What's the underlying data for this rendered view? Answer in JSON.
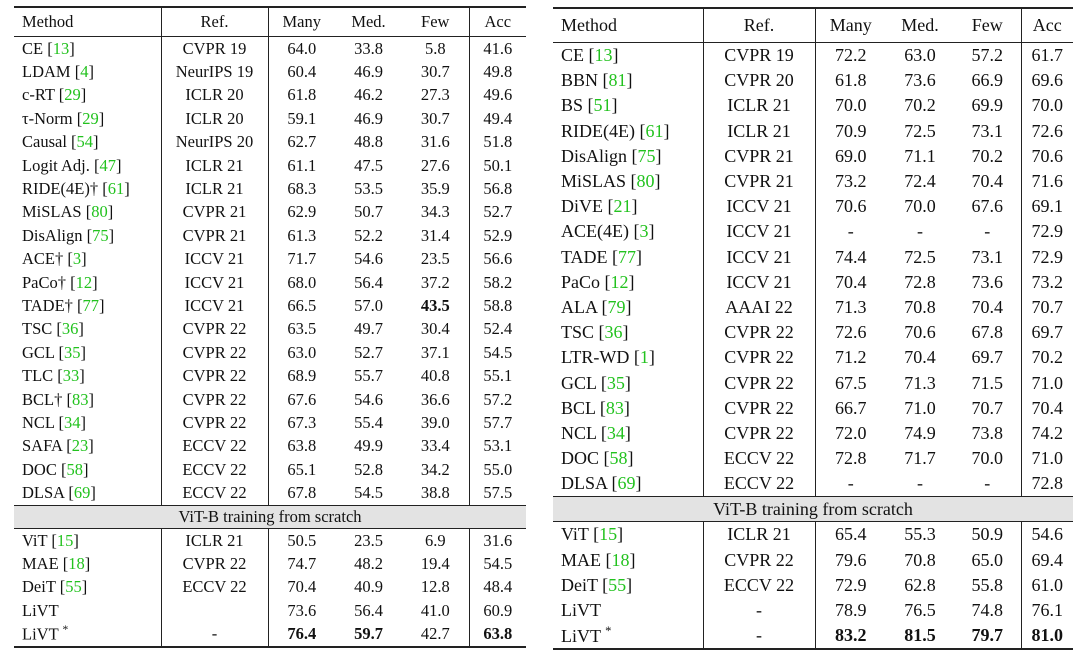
{
  "left": {
    "headers": {
      "method": "Method",
      "ref": "Ref.",
      "many": "Many",
      "med": "Med.",
      "few": "Few",
      "acc": "Acc"
    },
    "rows": [
      {
        "name": "CE ",
        "cite": "13",
        "suffix": "",
        "ref": "CVPR 19",
        "many": "64.0",
        "med": "33.8",
        "few": "5.8",
        "acc": "41.6"
      },
      {
        "name": "LDAM ",
        "cite": "4",
        "suffix": "",
        "ref": "NeurIPS 19",
        "many": "60.4",
        "med": "46.9",
        "few": "30.7",
        "acc": "49.8"
      },
      {
        "name": "c-RT ",
        "cite": "29",
        "suffix": "",
        "ref": "ICLR 20",
        "many": "61.8",
        "med": "46.2",
        "few": "27.3",
        "acc": "49.6"
      },
      {
        "name": "τ-Norm ",
        "cite": "29",
        "suffix": "",
        "ref": "ICLR 20",
        "many": "59.1",
        "med": "46.9",
        "few": "30.7",
        "acc": "49.4"
      },
      {
        "name": "Causal ",
        "cite": "54",
        "suffix": "",
        "ref": "NeurIPS 20",
        "many": "62.7",
        "med": "48.8",
        "few": "31.6",
        "acc": "51.8"
      },
      {
        "name": "Logit Adj. ",
        "cite": "47",
        "suffix": "",
        "ref": "ICLR 21",
        "many": "61.1",
        "med": "47.5",
        "few": "27.6",
        "acc": "50.1"
      },
      {
        "name": "RIDE(4E)† ",
        "cite": "61",
        "suffix": "",
        "ref": "ICLR 21",
        "many": "68.3",
        "med": "53.5",
        "few": "35.9",
        "acc": "56.8"
      },
      {
        "name": "MiSLAS ",
        "cite": "80",
        "suffix": "",
        "ref": "CVPR 21",
        "many": "62.9",
        "med": "50.7",
        "few": "34.3",
        "acc": "52.7"
      },
      {
        "name": "DisAlign ",
        "cite": "75",
        "suffix": "",
        "ref": "CVPR 21",
        "many": "61.3",
        "med": "52.2",
        "few": "31.4",
        "acc": "52.9"
      },
      {
        "name": "ACE† ",
        "cite": "3",
        "suffix": "",
        "ref": "ICCV 21",
        "many": "71.7",
        "med": "54.6",
        "few": "23.5",
        "acc": "56.6"
      },
      {
        "name": "PaCo† ",
        "cite": "12",
        "suffix": "",
        "ref": "ICCV 21",
        "many": "68.0",
        "med": "56.4",
        "few": "37.2",
        "acc": "58.2"
      },
      {
        "name": "TADE† ",
        "cite": "77",
        "suffix": "",
        "ref": "ICCV 21",
        "many": "66.5",
        "med": "57.0",
        "few": "43.5",
        "acc": "58.8",
        "bold": [
          "few"
        ]
      },
      {
        "name": "TSC ",
        "cite": "36",
        "suffix": "",
        "ref": "CVPR 22",
        "many": "63.5",
        "med": "49.7",
        "few": "30.4",
        "acc": "52.4"
      },
      {
        "name": "GCL ",
        "cite": "35",
        "suffix": "",
        "ref": "CVPR 22",
        "many": "63.0",
        "med": "52.7",
        "few": "37.1",
        "acc": "54.5"
      },
      {
        "name": "TLC ",
        "cite": "33",
        "suffix": "",
        "ref": "CVPR 22",
        "many": "68.9",
        "med": "55.7",
        "few": "40.8",
        "acc": "55.1"
      },
      {
        "name": "BCL† ",
        "cite": "83",
        "suffix": "",
        "ref": "CVPR 22",
        "many": "67.6",
        "med": "54.6",
        "few": "36.6",
        "acc": "57.2"
      },
      {
        "name": "NCL ",
        "cite": "34",
        "suffix": "",
        "ref": "CVPR 22",
        "many": "67.3",
        "med": "55.4",
        "few": "39.0",
        "acc": "57.7"
      },
      {
        "name": "SAFA ",
        "cite": "23",
        "suffix": "",
        "ref": "ECCV 22",
        "many": "63.8",
        "med": "49.9",
        "few": "33.4",
        "acc": "53.1"
      },
      {
        "name": "DOC ",
        "cite": "58",
        "suffix": "",
        "ref": "ECCV 22",
        "many": "65.1",
        "med": "52.8",
        "few": "34.2",
        "acc": "55.0"
      },
      {
        "name": "DLSA ",
        "cite": "69",
        "suffix": "",
        "ref": "ECCV 22",
        "many": "67.8",
        "med": "54.5",
        "few": "38.8",
        "acc": "57.5"
      }
    ],
    "separator": "ViT-B training from scratch",
    "vit_rows": [
      {
        "name": "ViT ",
        "cite": "15",
        "suffix": "",
        "ref": "ICLR 21",
        "many": "50.5",
        "med": "23.5",
        "few": "6.9",
        "acc": "31.6"
      },
      {
        "name": "MAE ",
        "cite": "18",
        "suffix": "",
        "ref": "CVPR 22",
        "many": "74.7",
        "med": "48.2",
        "few": "19.4",
        "acc": "54.5"
      },
      {
        "name": "DeiT ",
        "cite": "55",
        "suffix": "",
        "ref": "ECCV 22",
        "many": "70.4",
        "med": "40.9",
        "few": "12.8",
        "acc": "48.4"
      },
      {
        "name": "LiVT",
        "cite": "",
        "suffix": "",
        "ref": "",
        "many": "73.6",
        "med": "56.4",
        "few": "41.0",
        "acc": "60.9"
      },
      {
        "name": "LiVT ",
        "cite": "",
        "suffix": "*",
        "ref": "-",
        "many": "76.4",
        "med": "59.7",
        "few": "42.7",
        "acc": "63.8",
        "bold": [
          "many",
          "med",
          "acc"
        ]
      }
    ]
  },
  "right": {
    "headers": {
      "method": "Method",
      "ref": "Ref.",
      "many": "Many",
      "med": "Med.",
      "few": "Few",
      "acc": "Acc"
    },
    "rows": [
      {
        "name": "CE ",
        "cite": "13",
        "suffix": "",
        "ref": "CVPR 19",
        "many": "72.2",
        "med": "63.0",
        "few": "57.2",
        "acc": "61.7"
      },
      {
        "name": "BBN ",
        "cite": "81",
        "suffix": "",
        "ref": "CVPR 20",
        "many": "61.8",
        "med": "73.6",
        "few": "66.9",
        "acc": "69.6"
      },
      {
        "name": "BS ",
        "cite": "51",
        "suffix": "",
        "ref": "ICLR 21",
        "many": "70.0",
        "med": "70.2",
        "few": "69.9",
        "acc": "70.0"
      },
      {
        "name": "RIDE(4E) ",
        "cite": "61",
        "suffix": "",
        "ref": "ICLR 21",
        "many": "70.9",
        "med": "72.5",
        "few": "73.1",
        "acc": "72.6"
      },
      {
        "name": "DisAlign ",
        "cite": "75",
        "suffix": "",
        "ref": "CVPR 21",
        "many": "69.0",
        "med": "71.1",
        "few": "70.2",
        "acc": "70.6"
      },
      {
        "name": "MiSLAS ",
        "cite": "80",
        "suffix": "",
        "ref": "CVPR 21",
        "many": "73.2",
        "med": "72.4",
        "few": "70.4",
        "acc": "71.6"
      },
      {
        "name": "DiVE ",
        "cite": "21",
        "suffix": "",
        "ref": "ICCV 21",
        "many": "70.6",
        "med": "70.0",
        "few": "67.6",
        "acc": "69.1"
      },
      {
        "name": "ACE(4E) ",
        "cite": "3",
        "suffix": "",
        "ref": "ICCV 21",
        "many": "-",
        "med": "-",
        "few": "-",
        "acc": "72.9"
      },
      {
        "name": "TADE ",
        "cite": "77",
        "suffix": "",
        "ref": "ICCV 21",
        "many": "74.4",
        "med": "72.5",
        "few": "73.1",
        "acc": "72.9"
      },
      {
        "name": "PaCo ",
        "cite": "12",
        "suffix": "",
        "ref": "ICCV 21",
        "many": "70.4",
        "med": "72.8",
        "few": "73.6",
        "acc": "73.2"
      },
      {
        "name": "ALA ",
        "cite": "79",
        "suffix": "",
        "ref": "AAAI 22",
        "many": "71.3",
        "med": "70.8",
        "few": "70.4",
        "acc": "70.7"
      },
      {
        "name": "TSC ",
        "cite": "36",
        "suffix": "",
        "ref": "CVPR 22",
        "many": "72.6",
        "med": "70.6",
        "few": "67.8",
        "acc": "69.7"
      },
      {
        "name": "LTR-WD ",
        "cite": "1",
        "suffix": "",
        "ref": "CVPR 22",
        "many": "71.2",
        "med": "70.4",
        "few": "69.7",
        "acc": "70.2"
      },
      {
        "name": "GCL ",
        "cite": "35",
        "suffix": "",
        "ref": "CVPR 22",
        "many": "67.5",
        "med": "71.3",
        "few": "71.5",
        "acc": "71.0"
      },
      {
        "name": "BCL ",
        "cite": "83",
        "suffix": "",
        "ref": "CVPR 22",
        "many": "66.7",
        "med": "71.0",
        "few": "70.7",
        "acc": "70.4"
      },
      {
        "name": "NCL ",
        "cite": "34",
        "suffix": "",
        "ref": "CVPR 22",
        "many": "72.0",
        "med": "74.9",
        "few": "73.8",
        "acc": "74.2"
      },
      {
        "name": "DOC ",
        "cite": "58",
        "suffix": "",
        "ref": "ECCV 22",
        "many": "72.8",
        "med": "71.7",
        "few": "70.0",
        "acc": "71.0"
      },
      {
        "name": "DLSA ",
        "cite": "69",
        "suffix": "",
        "ref": "ECCV 22",
        "many": "-",
        "med": "-",
        "few": "-",
        "acc": "72.8"
      }
    ],
    "separator": "ViT-B training from scratch",
    "vit_rows": [
      {
        "name": "ViT ",
        "cite": "15",
        "suffix": "",
        "ref": "ICLR 21",
        "many": "65.4",
        "med": "55.3",
        "few": "50.9",
        "acc": "54.6"
      },
      {
        "name": "MAE ",
        "cite": "18",
        "suffix": "",
        "ref": "CVPR 22",
        "many": "79.6",
        "med": "70.8",
        "few": "65.0",
        "acc": "69.4"
      },
      {
        "name": "DeiT ",
        "cite": "55",
        "suffix": "",
        "ref": "ECCV 22",
        "many": "72.9",
        "med": "62.8",
        "few": "55.8",
        "acc": "61.0"
      },
      {
        "name": "LiVT",
        "cite": "",
        "suffix": "",
        "ref": "-",
        "many": "78.9",
        "med": "76.5",
        "few": "74.8",
        "acc": "76.1"
      },
      {
        "name": "LiVT ",
        "cite": "",
        "suffix": "*",
        "ref": "-",
        "many": "83.2",
        "med": "81.5",
        "few": "79.7",
        "acc": "81.0",
        "bold": [
          "many",
          "med",
          "few",
          "acc"
        ]
      }
    ]
  },
  "colors": {
    "citation": "#22c21e",
    "separator_bg": "#e3e3e3"
  }
}
